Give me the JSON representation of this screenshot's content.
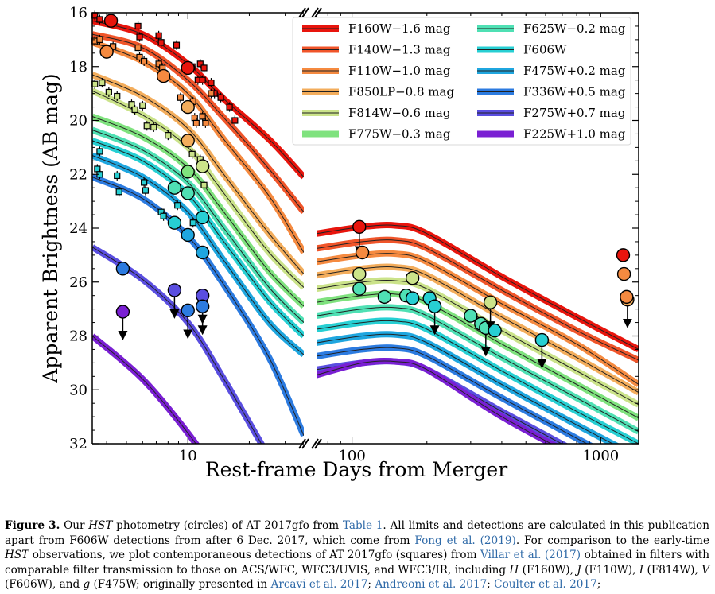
{
  "chart_data": {
    "type": "scatter",
    "xlabel": "Rest-frame Days from Merger",
    "ylabel": "Apparent Brightness (AB mag)",
    "ylim": [
      32,
      16
    ],
    "yticks": [
      16,
      18,
      20,
      22,
      24,
      26,
      28,
      30,
      32
    ],
    "xscale": "log (broken axis)",
    "xlim_left": [
      3.4,
      37
    ],
    "xlim_right": [
      72,
      1420
    ],
    "xticks_labeled": [
      10,
      100,
      1000
    ],
    "legend_position": "top-right",
    "series": [
      {
        "name": "F160W−1.6 mag",
        "color": "#e8150d",
        "early": [
          [
            3.4,
            16.3
          ],
          [
            6,
            16.8
          ],
          [
            10,
            17.9
          ],
          [
            15,
            19.2
          ],
          [
            25,
            20.7
          ],
          [
            37,
            22.1
          ]
        ],
        "late": [
          [
            72,
            24.2
          ],
          [
            110,
            23.95
          ],
          [
            150,
            23.9
          ],
          [
            200,
            24.2
          ],
          [
            400,
            25.8
          ],
          [
            800,
            27.3
          ],
          [
            1420,
            28.5
          ]
        ]
      },
      {
        "name": "F140W−1.3 mag",
        "color": "#f0552a",
        "early": [
          [
            3.4,
            16.8
          ],
          [
            6,
            17.3
          ],
          [
            10,
            18.5
          ],
          [
            15,
            19.9
          ],
          [
            25,
            21.8
          ],
          [
            37,
            23.4
          ]
        ],
        "late": [
          [
            72,
            24.75
          ],
          [
            110,
            24.5
          ],
          [
            150,
            24.45
          ],
          [
            200,
            24.75
          ],
          [
            400,
            26.3
          ],
          [
            800,
            27.8
          ],
          [
            1420,
            28.9
          ]
        ]
      },
      {
        "name": "F110W−1.0 mag",
        "color": "#f58a40",
        "early": [
          [
            3.4,
            17.1
          ],
          [
            6,
            17.8
          ],
          [
            10,
            19.0
          ],
          [
            15,
            20.7
          ],
          [
            25,
            22.8
          ],
          [
            37,
            24.9
          ]
        ],
        "late": [
          [
            72,
            25.25
          ],
          [
            110,
            25.0
          ],
          [
            150,
            24.95
          ],
          [
            200,
            25.25
          ],
          [
            400,
            26.8
          ],
          [
            800,
            28.3
          ],
          [
            1420,
            29.8
          ]
        ]
      },
      {
        "name": "F850LP−0.8 mag",
        "color": "#f3ad5c",
        "early": [
          [
            3.4,
            18.3
          ],
          [
            6,
            19.1
          ],
          [
            10,
            20.3
          ],
          [
            15,
            22.0
          ],
          [
            25,
            24.2
          ],
          [
            37,
            25.7
          ]
        ],
        "late": [
          [
            72,
            25.75
          ],
          [
            110,
            25.5
          ],
          [
            150,
            25.45
          ],
          [
            200,
            25.75
          ],
          [
            400,
            27.3
          ],
          [
            800,
            28.8
          ],
          [
            1420,
            30.1
          ]
        ]
      },
      {
        "name": "F814W−0.6 mag",
        "color": "#cbe38a",
        "early": [
          [
            3.4,
            18.9
          ],
          [
            6,
            19.8
          ],
          [
            10,
            21.0
          ],
          [
            15,
            22.7
          ],
          [
            25,
            24.9
          ],
          [
            37,
            26.2
          ]
        ],
        "late": [
          [
            72,
            26.25
          ],
          [
            110,
            26.0
          ],
          [
            150,
            25.95
          ],
          [
            200,
            26.25
          ],
          [
            400,
            27.8
          ],
          [
            800,
            29.3
          ],
          [
            1420,
            30.55
          ]
        ]
      },
      {
        "name": "F775W−0.3 mag",
        "color": "#7fe27e",
        "early": [
          [
            3.4,
            19.85
          ],
          [
            6,
            20.6
          ],
          [
            10,
            21.75
          ],
          [
            15,
            23.4
          ],
          [
            25,
            25.6
          ],
          [
            37,
            26.9
          ]
        ],
        "late": [
          [
            72,
            26.75
          ],
          [
            110,
            26.5
          ],
          [
            150,
            26.45
          ],
          [
            200,
            26.75
          ],
          [
            400,
            28.3
          ],
          [
            800,
            29.8
          ],
          [
            1420,
            31.05
          ]
        ]
      },
      {
        "name": "F625W−0.2 mag",
        "color": "#4fe0b4",
        "early": [
          [
            3.4,
            20.35
          ],
          [
            6,
            21.1
          ],
          [
            10,
            22.3
          ],
          [
            15,
            24.0
          ],
          [
            25,
            26.2
          ],
          [
            37,
            27.5
          ]
        ],
        "late": [
          [
            72,
            27.25
          ],
          [
            110,
            27.0
          ],
          [
            150,
            26.95
          ],
          [
            200,
            27.25
          ],
          [
            400,
            28.8
          ],
          [
            800,
            30.3
          ],
          [
            1420,
            31.55
          ]
        ]
      },
      {
        "name": "F606W",
        "color": "#27cfd3",
        "early": [
          [
            3.4,
            20.75
          ],
          [
            6,
            21.5
          ],
          [
            10,
            22.75
          ],
          [
            15,
            24.5
          ],
          [
            25,
            26.7
          ],
          [
            37,
            28.0
          ]
        ],
        "late": [
          [
            72,
            27.75
          ],
          [
            110,
            27.5
          ],
          [
            150,
            27.45
          ],
          [
            200,
            27.75
          ],
          [
            400,
            29.3
          ],
          [
            800,
            30.8
          ],
          [
            1420,
            32.0
          ]
        ]
      },
      {
        "name": "F475W+0.2 mag",
        "color": "#1fa6df",
        "early": [
          [
            3.4,
            21.3
          ],
          [
            6,
            22.1
          ],
          [
            10,
            23.4
          ],
          [
            15,
            25.2
          ],
          [
            25,
            27.5
          ],
          [
            37,
            28.7
          ]
        ],
        "late": [
          [
            72,
            28.25
          ],
          [
            110,
            28.0
          ],
          [
            150,
            27.95
          ],
          [
            200,
            28.25
          ],
          [
            400,
            29.8
          ],
          [
            800,
            31.3
          ],
          [
            1420,
            32.5
          ]
        ]
      },
      {
        "name": "F336W+0.5 mag",
        "color": "#2c7be0",
        "early": [
          [
            3.4,
            22.1
          ],
          [
            6,
            22.9
          ],
          [
            10,
            24.3
          ],
          [
            15,
            26.1
          ],
          [
            25,
            28.8
          ],
          [
            37,
            31.7
          ]
        ],
        "late": [
          [
            72,
            28.75
          ],
          [
            110,
            28.5
          ],
          [
            150,
            28.45
          ],
          [
            200,
            28.75
          ],
          [
            400,
            30.3
          ],
          [
            800,
            31.8
          ],
          [
            1420,
            33.0
          ]
        ]
      },
      {
        "name": "F275W+0.7 mag",
        "color": "#5a4ee0",
        "early": [
          [
            3.4,
            24.7
          ],
          [
            6,
            25.9
          ],
          [
            10,
            27.5
          ],
          [
            15,
            29.6
          ],
          [
            25,
            32.5
          ]
        ],
        "late": [
          [
            72,
            29.25
          ],
          [
            110,
            29.0
          ],
          [
            150,
            28.95
          ],
          [
            200,
            29.25
          ],
          [
            400,
            30.8
          ],
          [
            800,
            32.3
          ]
        ]
      },
      {
        "name": "F225W+1.0 mag",
        "color": "#7a1fd3",
        "early": [
          [
            3.4,
            28.0
          ],
          [
            6,
            29.6
          ],
          [
            10,
            31.6
          ],
          [
            15,
            33.5
          ]
        ],
        "late": [
          [
            72,
            29.45
          ],
          [
            110,
            29.0
          ],
          [
            150,
            28.95
          ],
          [
            200,
            29.25
          ],
          [
            400,
            31.0
          ],
          [
            800,
            32.5
          ]
        ]
      }
    ],
    "circles": [
      {
        "x": 4.2,
        "y": 16.3,
        "c": "#e8150d"
      },
      {
        "x": 10,
        "y": 18.05,
        "c": "#e8150d"
      },
      {
        "x": 4,
        "y": 17.45,
        "c": "#f58a40"
      },
      {
        "x": 7.6,
        "y": 18.35,
        "c": "#f58a40"
      },
      {
        "x": 10,
        "y": 19.5,
        "c": "#f3ad5c"
      },
      {
        "x": 10,
        "y": 20.75,
        "c": "#f3ad5c"
      },
      {
        "x": 10,
        "y": 21.9,
        "c": "#7fe27e"
      },
      {
        "x": 11.8,
        "y": 21.7,
        "c": "#cbe38a"
      },
      {
        "x": 8.6,
        "y": 22.5,
        "c": "#4fe0b4"
      },
      {
        "x": 10,
        "y": 22.7,
        "c": "#4fe0b4"
      },
      {
        "x": 8.6,
        "y": 23.8,
        "c": "#27cfd3"
      },
      {
        "x": 11.8,
        "y": 23.6,
        "c": "#27cfd3"
      },
      {
        "x": 10,
        "y": 24.25,
        "c": "#1fa6df"
      },
      {
        "x": 11.8,
        "y": 24.9,
        "c": "#1fa6df"
      },
      {
        "x": 4.8,
        "y": 25.5,
        "c": "#2c7be0"
      },
      {
        "x": 8.6,
        "y": 26.3,
        "c": "#5a4ee0",
        "lim": true
      },
      {
        "x": 11.8,
        "y": 26.5,
        "c": "#5a4ee0",
        "lim": true
      },
      {
        "x": 4.8,
        "y": 27.1,
        "c": "#7a1fd3",
        "lim": true
      },
      {
        "x": 10,
        "y": 27.05,
        "c": "#2c7be0",
        "lim": true
      },
      {
        "x": 11.8,
        "y": 26.9,
        "c": "#2c7be0",
        "lim": true
      },
      {
        "x": 107,
        "y": 23.95,
        "c": "#e8150d",
        "lim": true
      },
      {
        "x": 110,
        "y": 24.9,
        "c": "#f58a40"
      },
      {
        "x": 107,
        "y": 25.7,
        "c": "#cbe38a"
      },
      {
        "x": 107,
        "y": 26.25,
        "c": "#4fe0b4"
      },
      {
        "x": 135,
        "y": 26.55,
        "c": "#4fe0b4"
      },
      {
        "x": 165,
        "y": 26.5,
        "c": "#4fe0b4"
      },
      {
        "x": 175,
        "y": 25.85,
        "c": "#cbe38a"
      },
      {
        "x": 175,
        "y": 26.6,
        "c": "#27cfd3"
      },
      {
        "x": 205,
        "y": 26.6,
        "c": "#27cfd3"
      },
      {
        "x": 215,
        "y": 26.9,
        "c": "#27cfd3",
        "lim": true
      },
      {
        "x": 300,
        "y": 27.25,
        "c": "#4fe0b4"
      },
      {
        "x": 330,
        "y": 27.55,
        "c": "#4fe0b4"
      },
      {
        "x": 345,
        "y": 27.7,
        "c": "#4fe0b4",
        "lim": true
      },
      {
        "x": 360,
        "y": 26.75,
        "c": "#cbe38a",
        "lim": true
      },
      {
        "x": 375,
        "y": 27.8,
        "c": "#27cfd3"
      },
      {
        "x": 580,
        "y": 28.15,
        "c": "#27cfd3",
        "lim": true
      },
      {
        "x": 1230,
        "y": 25.0,
        "c": "#e8150d"
      },
      {
        "x": 1240,
        "y": 25.7,
        "c": "#f58a40"
      },
      {
        "x": 1280,
        "y": 26.65,
        "c": "#f3ad5c",
        "lim": true
      },
      {
        "x": 1270,
        "y": 26.55,
        "c": "#f58a40"
      }
    ],
    "squares": [
      {
        "x": 3.5,
        "y": 16.1,
        "c": "#e8150d"
      },
      {
        "x": 3.7,
        "y": 16.25,
        "c": "#e8150d"
      },
      {
        "x": 5.7,
        "y": 16.5,
        "c": "#e8150d"
      },
      {
        "x": 5.8,
        "y": 16.9,
        "c": "#e8150d"
      },
      {
        "x": 7.2,
        "y": 16.85,
        "c": "#e8150d"
      },
      {
        "x": 7.4,
        "y": 17.1,
        "c": "#e8150d"
      },
      {
        "x": 8.8,
        "y": 17.2,
        "c": "#e8150d"
      },
      {
        "x": 10.5,
        "y": 18.0,
        "c": "#e8150d"
      },
      {
        "x": 11.5,
        "y": 17.9,
        "c": "#e8150d"
      },
      {
        "x": 12.0,
        "y": 18.05,
        "c": "#e8150d"
      },
      {
        "x": 11.2,
        "y": 18.5,
        "c": "#e8150d"
      },
      {
        "x": 11.8,
        "y": 18.5,
        "c": "#e8150d"
      },
      {
        "x": 13,
        "y": 18.6,
        "c": "#e8150d"
      },
      {
        "x": 13.5,
        "y": 19.0,
        "c": "#e8150d"
      },
      {
        "x": 14.5,
        "y": 19.15,
        "c": "#e8150d"
      },
      {
        "x": 16,
        "y": 19.5,
        "c": "#e8150d"
      },
      {
        "x": 17,
        "y": 20.0,
        "c": "#e8150d"
      },
      {
        "x": 3.5,
        "y": 17.05,
        "c": "#f58a40"
      },
      {
        "x": 3.7,
        "y": 17.0,
        "c": "#f58a40"
      },
      {
        "x": 4.3,
        "y": 17.25,
        "c": "#f58a40"
      },
      {
        "x": 5.7,
        "y": 17.3,
        "c": "#f58a40"
      },
      {
        "x": 5.8,
        "y": 17.65,
        "c": "#f58a40"
      },
      {
        "x": 6.1,
        "y": 17.8,
        "c": "#f58a40"
      },
      {
        "x": 7.2,
        "y": 17.9,
        "c": "#f58a40"
      },
      {
        "x": 7.5,
        "y": 18.05,
        "c": "#f58a40"
      },
      {
        "x": 9.2,
        "y": 19.15,
        "c": "#f58a40"
      },
      {
        "x": 10.8,
        "y": 19.9,
        "c": "#f58a40"
      },
      {
        "x": 11.8,
        "y": 19.85,
        "c": "#f58a40"
      },
      {
        "x": 11.0,
        "y": 20.1,
        "c": "#f58a40"
      },
      {
        "x": 12.2,
        "y": 20.1,
        "c": "#f58a40"
      },
      {
        "x": 10.6,
        "y": 19.3,
        "c": "#f58a40"
      },
      {
        "x": 13,
        "y": 19.0,
        "c": "#f58a40"
      },
      {
        "x": 3.5,
        "y": 18.65,
        "c": "#cbe38a"
      },
      {
        "x": 3.8,
        "y": 18.6,
        "c": "#cbe38a"
      },
      {
        "x": 4.1,
        "y": 18.95,
        "c": "#cbe38a"
      },
      {
        "x": 4.5,
        "y": 19.1,
        "c": "#cbe38a"
      },
      {
        "x": 5.3,
        "y": 19.4,
        "c": "#cbe38a"
      },
      {
        "x": 5.5,
        "y": 19.6,
        "c": "#cbe38a"
      },
      {
        "x": 6.0,
        "y": 19.45,
        "c": "#cbe38a"
      },
      {
        "x": 6.3,
        "y": 20.2,
        "c": "#cbe38a"
      },
      {
        "x": 6.8,
        "y": 20.25,
        "c": "#cbe38a"
      },
      {
        "x": 8.0,
        "y": 20.55,
        "c": "#cbe38a"
      },
      {
        "x": 10.5,
        "y": 21.25,
        "c": "#cbe38a"
      },
      {
        "x": 11.5,
        "y": 21.45,
        "c": "#cbe38a"
      },
      {
        "x": 12.0,
        "y": 22.4,
        "c": "#cbe38a"
      },
      {
        "x": 3.7,
        "y": 21.15,
        "c": "#27cfd3"
      },
      {
        "x": 3.6,
        "y": 21.8,
        "c": "#27cfd3"
      },
      {
        "x": 3.7,
        "y": 22.0,
        "c": "#27cfd3"
      },
      {
        "x": 4.5,
        "y": 22.05,
        "c": "#27cfd3"
      },
      {
        "x": 4.6,
        "y": 22.65,
        "c": "#27cfd3"
      },
      {
        "x": 6.1,
        "y": 22.3,
        "c": "#27cfd3"
      },
      {
        "x": 6.2,
        "y": 22.6,
        "c": "#27cfd3"
      },
      {
        "x": 7.4,
        "y": 23.4,
        "c": "#27cfd3"
      },
      {
        "x": 7.6,
        "y": 23.55,
        "c": "#27cfd3"
      },
      {
        "x": 8.9,
        "y": 23.15,
        "c": "#27cfd3"
      },
      {
        "x": 10.6,
        "y": 23.8,
        "c": "#27cfd3"
      }
    ]
  },
  "caption": {
    "fig_label": "Figure 3.",
    "t1": " Our ",
    "hst1": "HST",
    "t2": " photometry (circles) of AT 2017gfo from ",
    "table_link": "Table 1",
    "t3": ". All limits and detections are calculated in this publication apart from F606W detections from after 6 Dec. 2017, which come from ",
    "fong_link": "Fong et al. (2019)",
    "t4": ". For comparison to the early-time ",
    "hst2": "HST",
    "t5": " observations, we plot contemporaneous detections of AT 2017gfo (squares) from ",
    "villar_link": "Villar et al. (2017)",
    "t6": " obtained in filters with comparable filter transmission to those on ACS/WFC, WFC3/UVIS, and WFC3/IR, including ",
    "H": "H",
    "t7": " (F160W), ",
    "J": "J",
    "t8": " (F110W), ",
    "I": "I",
    "t9": " (F814W), ",
    "V": "V",
    "t10": " (F606W), and ",
    "g": "g",
    "t11": " (F475W; originally presented in ",
    "arcavi_link": "Arcavi et al. 2017",
    "t12": "; ",
    "andreoni_link": "Andreoni et al. 2017",
    "t13": "; ",
    "coulter_link": "Coulter et al. 2017",
    "t14": ";"
  }
}
